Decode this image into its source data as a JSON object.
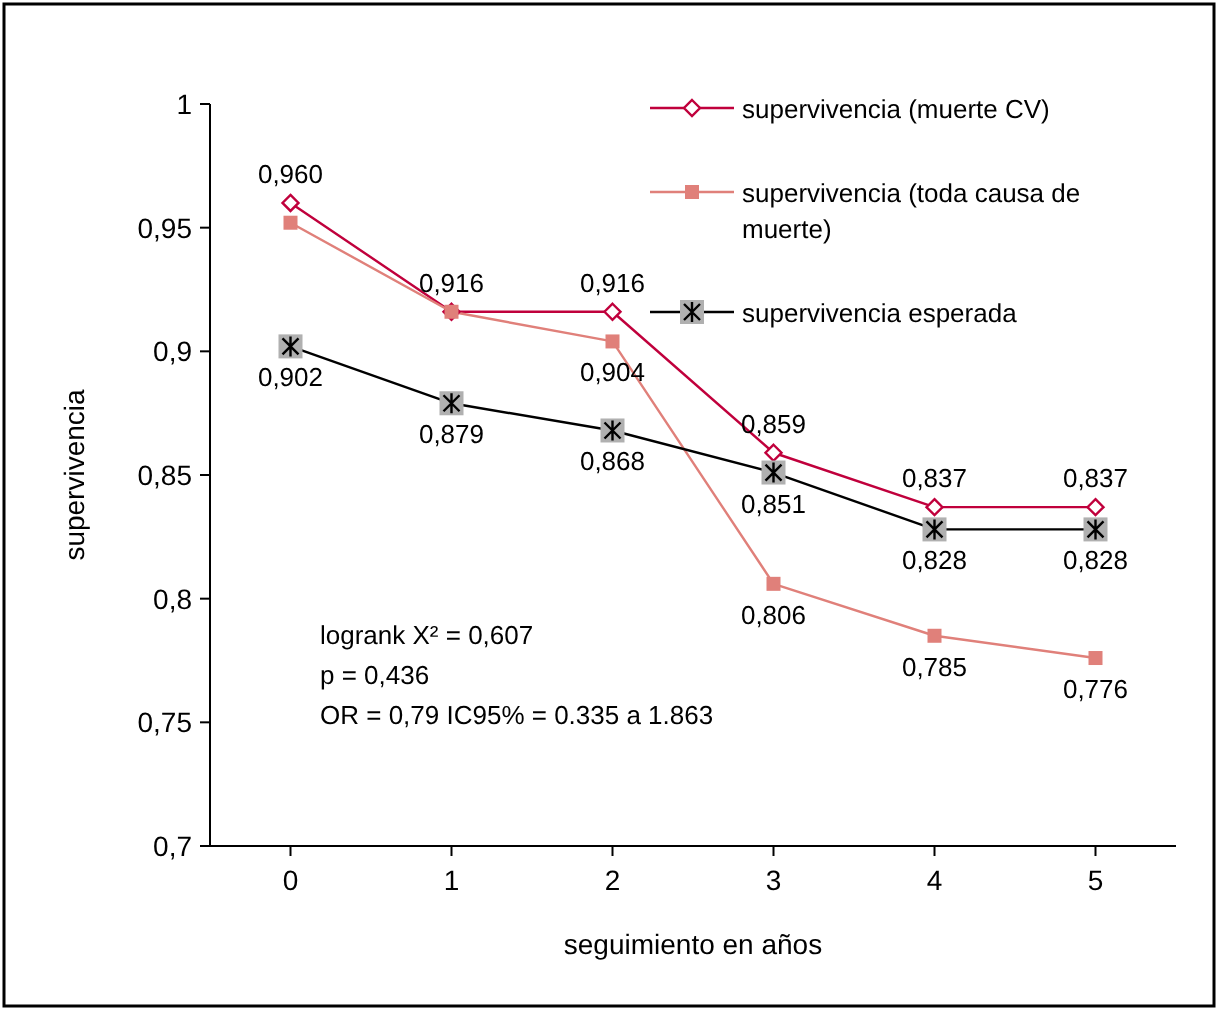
{
  "chart_data": {
    "type": "line",
    "xlabel": "seguimiento en años",
    "ylabel": "supervivencia",
    "x": [
      0,
      1,
      2,
      3,
      4,
      5
    ],
    "xlim": [
      -0.5,
      5.5
    ],
    "xticks": [
      0,
      1,
      2,
      3,
      4,
      5
    ],
    "ylim": [
      0.7,
      1
    ],
    "yticks": [
      {
        "value": 0.7,
        "label": "0,7"
      },
      {
        "value": 0.75,
        "label": "0,75"
      },
      {
        "value": 0.8,
        "label": "0,8"
      },
      {
        "value": 0.85,
        "label": "0,85"
      },
      {
        "value": 0.9,
        "label": "0,9"
      },
      {
        "value": 0.95,
        "label": "0,95"
      },
      {
        "value": 1,
        "label": "1"
      }
    ],
    "grid": false,
    "legend": "top right",
    "series": [
      {
        "name": "supervivencia (muerte CV)",
        "color": "#c0003c",
        "marker": "diamond",
        "values": [
          0.96,
          0.916,
          0.916,
          0.859,
          0.837,
          0.837
        ],
        "value_labels": [
          "0,960",
          "0,916",
          "0,916",
          "0,859",
          "0,837",
          "0,837"
        ]
      },
      {
        "name": "supervivencia (toda causa de muerte)",
        "color": "#e0807a",
        "marker": "square",
        "values": [
          0.952,
          0.916,
          0.904,
          0.806,
          0.785,
          0.776
        ],
        "value_labels": [
          null,
          null,
          "0,904",
          "0,806",
          "0,785",
          "0,776"
        ]
      },
      {
        "name": "supervivencia esperada",
        "color": "#000000",
        "marker": "cross",
        "values": [
          0.902,
          0.879,
          0.868,
          0.851,
          0.828,
          0.828
        ],
        "value_labels": [
          "0,902",
          "0,879",
          "0,868",
          "0,851",
          "0,828",
          "0,828"
        ]
      }
    ],
    "annotations": [
      "logrank X² = 0,607",
      "p = 0,436",
      "OR = 0,79  IC95% = 0.335 a 1.863"
    ]
  }
}
